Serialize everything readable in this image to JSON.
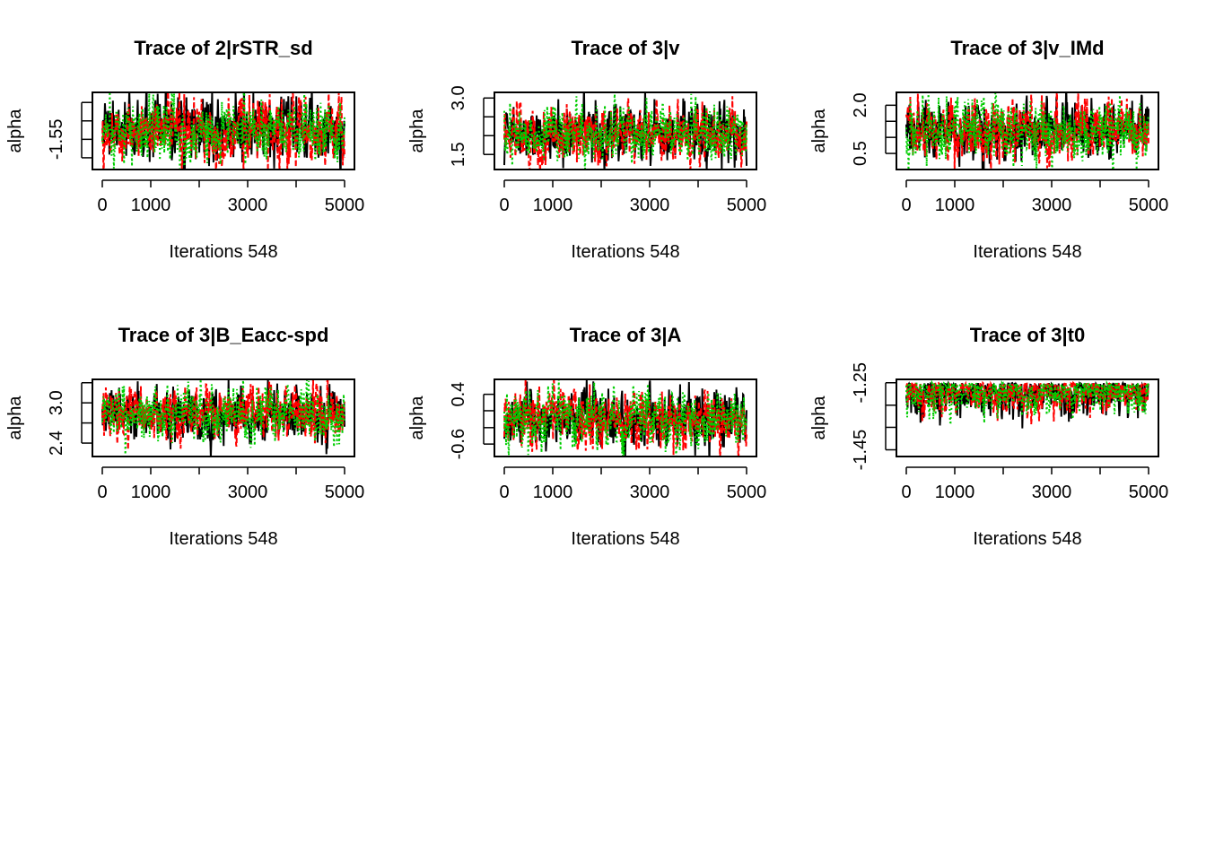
{
  "figure": {
    "palette": {
      "series": [
        "#000000",
        "#ff0000",
        "#00cd00"
      ]
    }
  },
  "chart_data": [
    {
      "type": "line",
      "title": "Trace of 2|rSTR_sd",
      "xlabel": "Iterations 548",
      "ylabel": "alpha",
      "xlim": [
        0,
        5000
      ],
      "ylim": [
        -1.73,
        -1.27
      ],
      "x_ticks": [
        0,
        1000,
        2000,
        3000,
        4000,
        5000
      ],
      "x_tick_labels": [
        "0",
        "1000",
        "",
        "3000",
        "",
        "5000"
      ],
      "y_ticks": [
        -1.66,
        -1.55,
        -1.44,
        -1.33
      ],
      "y_tick_labels": [
        "",
        "-1.55",
        "",
        ""
      ],
      "center": -1.5,
      "spread": 0.085,
      "series": [
        {
          "values": {
            "iterations": 548,
            "mean": -1.5,
            "sd": 0.05
          }
        },
        {
          "values": {
            "iterations": 548,
            "mean": -1.5,
            "sd": 0.05
          }
        },
        {
          "values": {
            "iterations": 548,
            "mean": -1.5,
            "sd": 0.05
          }
        }
      ]
    },
    {
      "type": "line",
      "title": "Trace of 3|v",
      "xlabel": "Iterations 548",
      "ylabel": "alpha",
      "xlim": [
        0,
        5000
      ],
      "ylim": [
        1.1,
        3.15
      ],
      "x_ticks": [
        0,
        1000,
        2000,
        3000,
        4000,
        5000
      ],
      "x_tick_labels": [
        "0",
        "1000",
        "",
        "3000",
        "",
        "5000"
      ],
      "y_ticks": [
        1.5,
        2.0,
        2.5,
        3.0
      ],
      "y_tick_labels": [
        "1.5",
        "",
        "",
        "3.0"
      ],
      "center": 2.05,
      "spread": 0.34,
      "series": [
        {
          "values": {
            "iterations": 548,
            "mean": 2.05,
            "sd": 0.2
          }
        },
        {
          "values": {
            "iterations": 548,
            "mean": 2.05,
            "sd": 0.2
          }
        },
        {
          "values": {
            "iterations": 548,
            "mean": 2.05,
            "sd": 0.2
          }
        }
      ]
    },
    {
      "type": "line",
      "title": "Trace of 3|v_IMd",
      "xlabel": "Iterations 548",
      "ylabel": "alpha",
      "xlim": [
        0,
        5000
      ],
      "ylim": [
        0.0,
        2.4
      ],
      "x_ticks": [
        0,
        1000,
        2000,
        3000,
        4000,
        5000
      ],
      "x_tick_labels": [
        "0",
        "1000",
        "",
        "3000",
        "",
        "5000"
      ],
      "y_ticks": [
        0.5,
        1.0,
        1.5,
        2.0
      ],
      "y_tick_labels": [
        "0.5",
        "",
        "",
        "2.0"
      ],
      "center": 1.2,
      "spread": 0.42,
      "series": [
        {
          "values": {
            "iterations": 548,
            "mean": 1.2,
            "sd": 0.25
          }
        },
        {
          "values": {
            "iterations": 548,
            "mean": 1.2,
            "sd": 0.25
          }
        },
        {
          "values": {
            "iterations": 548,
            "mean": 1.2,
            "sd": 0.25
          }
        }
      ]
    },
    {
      "type": "line",
      "title": "Trace of 3|B_Eacc-spd",
      "xlabel": "Iterations 548",
      "ylabel": "alpha",
      "xlim": [
        0,
        5000
      ],
      "ylim": [
        2.2,
        3.35
      ],
      "x_ticks": [
        0,
        1000,
        2000,
        3000,
        4000,
        5000
      ],
      "x_tick_labels": [
        "0",
        "1000",
        "",
        "3000",
        "",
        "5000"
      ],
      "y_ticks": [
        2.4,
        2.7,
        3.0,
        3.3
      ],
      "y_tick_labels": [
        "2.4",
        "",
        "3.0",
        ""
      ],
      "center": 2.82,
      "spread": 0.18,
      "series": [
        {
          "values": {
            "iterations": 548,
            "mean": 2.82,
            "sd": 0.11
          }
        },
        {
          "values": {
            "iterations": 548,
            "mean": 2.82,
            "sd": 0.11
          }
        },
        {
          "values": {
            "iterations": 548,
            "mean": 2.82,
            "sd": 0.11
          }
        }
      ]
    },
    {
      "type": "line",
      "title": "Trace of 3|A",
      "xlabel": "Iterations 548",
      "ylabel": "alpha",
      "xlim": [
        0,
        5000
      ],
      "ylim": [
        -0.85,
        0.7
      ],
      "x_ticks": [
        0,
        1000,
        2000,
        3000,
        4000,
        5000
      ],
      "x_tick_labels": [
        "0",
        "1000",
        "",
        "3000",
        "",
        "5000"
      ],
      "y_ticks": [
        -0.6,
        -0.27,
        0.07,
        0.4
      ],
      "y_tick_labels": [
        "-0.6",
        "",
        "",
        "0.4"
      ],
      "center": -0.1,
      "spread": 0.27,
      "series": [
        {
          "values": {
            "iterations": 548,
            "mean": -0.1,
            "sd": 0.16
          }
        },
        {
          "values": {
            "iterations": 548,
            "mean": -0.1,
            "sd": 0.16
          }
        },
        {
          "values": {
            "iterations": 548,
            "mean": -0.1,
            "sd": 0.16
          }
        }
      ]
    },
    {
      "type": "line",
      "title": "Trace of 3|t0",
      "xlabel": "Iterations 548",
      "ylabel": "alpha",
      "xlim": [
        0,
        5000
      ],
      "ylim": [
        -1.47,
        -1.24
      ],
      "x_ticks": [
        0,
        1000,
        2000,
        3000,
        4000,
        5000
      ],
      "x_tick_labels": [
        "0",
        "1000",
        "",
        "3000",
        "",
        "5000"
      ],
      "y_ticks": [
        -1.45,
        -1.383,
        -1.317,
        -1.25
      ],
      "y_tick_labels": [
        "-1.45",
        "",
        "",
        "-1.25"
      ],
      "center": -1.28,
      "spread": 0.03,
      "upper_cap": -1.25,
      "series": [
        {
          "values": {
            "iterations": 548,
            "mean": -1.28,
            "sd": 0.025
          }
        },
        {
          "values": {
            "iterations": 548,
            "mean": -1.28,
            "sd": 0.025
          }
        },
        {
          "values": {
            "iterations": 548,
            "mean": -1.28,
            "sd": 0.025
          }
        }
      ]
    }
  ]
}
